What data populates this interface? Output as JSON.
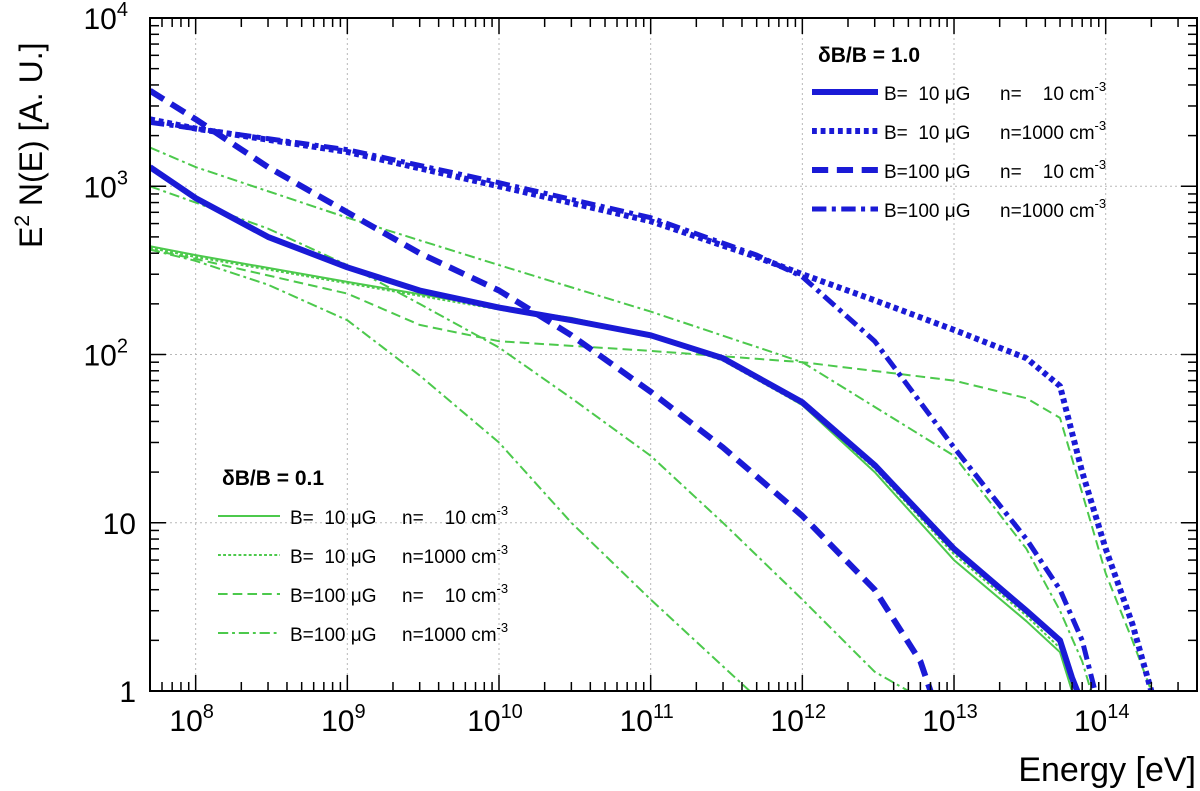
{
  "chart_data": {
    "type": "line",
    "xscale": "log",
    "yscale": "log",
    "xlim": [
      50000000.0,
      400000000000000.0
    ],
    "ylim": [
      1,
      10000
    ],
    "xlabel": "Energy [eV]",
    "ylabel": "E",
    "ylabel_sup": "2",
    "ylabel_rest": " N(E) [A. U.]",
    "x_ticks": [
      {
        "value": 100000000.0,
        "base": "10",
        "exp": "8"
      },
      {
        "value": 1000000000.0,
        "base": "10",
        "exp": "9"
      },
      {
        "value": 10000000000.0,
        "base": "10",
        "exp": "10"
      },
      {
        "value": 100000000000.0,
        "base": "10",
        "exp": "11"
      },
      {
        "value": 1000000000000.0,
        "base": "10",
        "exp": "12"
      },
      {
        "value": 10000000000000.0,
        "base": "10",
        "exp": "13"
      },
      {
        "value": 100000000000000.0,
        "base": "10",
        "exp": "14"
      }
    ],
    "y_ticks": [
      {
        "value": 1,
        "base": "1",
        "exp": ""
      },
      {
        "value": 10,
        "base": "10",
        "exp": ""
      },
      {
        "value": 100,
        "base": "10",
        "exp": "2"
      },
      {
        "value": 1000,
        "base": "10",
        "exp": "3"
      },
      {
        "value": 10000,
        "base": "10",
        "exp": "4"
      }
    ],
    "grid": true,
    "legend_groups": [
      {
        "title": "δB/B = 1.0",
        "placement": "top-right"
      },
      {
        "title": "δB/B = 0.1",
        "placement": "bottom-left"
      }
    ],
    "series": [
      {
        "name": "B= 10 μG n= 10 cm-3",
        "label_b": "B=  10 μG",
        "label_n": "n=    10 cm",
        "label_exp": "-3",
        "group": 0,
        "color": "#1a1ad6",
        "style": "solid",
        "width": 6,
        "points": [
          [
            50000000.0,
            1300
          ],
          [
            100000000.0,
            850
          ],
          [
            300000000.0,
            500
          ],
          [
            1000000000.0,
            330
          ],
          [
            3000000000.0,
            240
          ],
          [
            10000000000.0,
            190
          ],
          [
            30000000000.0,
            160
          ],
          [
            100000000000.0,
            130
          ],
          [
            300000000000.0,
            95
          ],
          [
            1000000000000.0,
            52
          ],
          [
            3000000000000.0,
            22
          ],
          [
            10000000000000.0,
            7
          ],
          [
            30000000000000.0,
            3
          ],
          [
            50000000000000.0,
            2
          ],
          [
            60000000000000.0,
            1.2
          ],
          [
            65000000000000.0,
            1
          ]
        ]
      },
      {
        "name": "B= 10 μG n=1000 cm-3",
        "label_b": "B=  10 μG",
        "label_n": "n=1000 cm",
        "label_exp": "-3",
        "group": 0,
        "color": "#1a1ad6",
        "style": "dot",
        "width": 6,
        "points": [
          [
            50000000.0,
            2500
          ],
          [
            100000000.0,
            2200
          ],
          [
            1000000000.0,
            1600
          ],
          [
            10000000000.0,
            1000
          ],
          [
            100000000000.0,
            620
          ],
          [
            500000000000.0,
            380
          ],
          [
            1000000000000.0,
            300
          ],
          [
            3000000000000.0,
            210
          ],
          [
            10000000000000.0,
            140
          ],
          [
            30000000000000.0,
            95
          ],
          [
            50000000000000.0,
            65
          ],
          [
            70000000000000.0,
            20
          ],
          [
            100000000000000.0,
            7
          ],
          [
            150000000000000.0,
            2.5
          ],
          [
            200000000000000.0,
            1
          ]
        ]
      },
      {
        "name": "B=100 μG n= 10 cm-3",
        "label_b": "B=100 μG",
        "label_n": "n=    10 cm",
        "label_exp": "-3",
        "group": 0,
        "color": "#1a1ad6",
        "style": "dash",
        "width": 6,
        "points": [
          [
            50000000.0,
            3700
          ],
          [
            100000000.0,
            2500
          ],
          [
            300000000.0,
            1300
          ],
          [
            1000000000.0,
            700
          ],
          [
            3000000000.0,
            400
          ],
          [
            10000000000.0,
            240
          ],
          [
            30000000000.0,
            130
          ],
          [
            100000000000.0,
            60
          ],
          [
            300000000000.0,
            28
          ],
          [
            1000000000000.0,
            11
          ],
          [
            3000000000000.0,
            4
          ],
          [
            6000000000000.0,
            1.5
          ],
          [
            7000000000000.0,
            1
          ]
        ]
      },
      {
        "name": "B=100 μG n=1000 cm-3",
        "label_b": "B=100 μG",
        "label_n": "n=1000 cm",
        "label_exp": "-3",
        "group": 0,
        "color": "#1a1ad6",
        "style": "dashdot",
        "width": 5,
        "points": [
          [
            50000000.0,
            2400
          ],
          [
            100000000.0,
            2200
          ],
          [
            1000000000.0,
            1650
          ],
          [
            10000000000.0,
            1050
          ],
          [
            100000000000.0,
            650
          ],
          [
            500000000000.0,
            390
          ],
          [
            1000000000000.0,
            290
          ],
          [
            3000000000000.0,
            120
          ],
          [
            10000000000000.0,
            28
          ],
          [
            30000000000000.0,
            8
          ],
          [
            50000000000000.0,
            4
          ],
          [
            70000000000000.0,
            2
          ],
          [
            85000000000000.0,
            1
          ]
        ]
      },
      {
        "name": "δB/B 0.1: B= 10 μG n= 10 cm-3",
        "label_b": "B=  10 μG",
        "label_n": "n=    10 cm",
        "label_exp": "-3",
        "group": 1,
        "color": "#4cc94c",
        "style": "solid",
        "width": 2,
        "points": [
          [
            50000000.0,
            440
          ],
          [
            100000000.0,
            390
          ],
          [
            1000000000.0,
            270
          ],
          [
            10000000000.0,
            190
          ],
          [
            30000000000.0,
            165
          ],
          [
            100000000000.0,
            130
          ],
          [
            300000000000.0,
            95
          ],
          [
            1000000000000.0,
            50
          ],
          [
            3000000000000.0,
            20
          ],
          [
            10000000000000.0,
            6
          ],
          [
            30000000000000.0,
            2.6
          ],
          [
            50000000000000.0,
            1.7
          ],
          [
            60000000000000.0,
            1
          ]
        ]
      },
      {
        "name": "δB/B 0.1: B= 10 μG n=1000 cm-3",
        "label_b": "B=  10 μG",
        "label_n": "n=1000 cm",
        "label_exp": "-3",
        "group": 1,
        "color": "#4cc94c",
        "style": "dot",
        "width": 2,
        "points": [
          [
            50000000.0,
            430
          ],
          [
            100000000.0,
            380
          ],
          [
            1000000000.0,
            265
          ],
          [
            10000000000.0,
            185
          ],
          [
            30000000000.0,
            160
          ],
          [
            100000000000.0,
            128
          ],
          [
            300000000000.0,
            92
          ],
          [
            1000000000000.0,
            50
          ],
          [
            3000000000000.0,
            21
          ],
          [
            10000000000000.0,
            6.5
          ],
          [
            30000000000000.0,
            2.8
          ],
          [
            50000000000000.0,
            1.8
          ],
          [
            60000000000000.0,
            1
          ]
        ]
      },
      {
        "name": "δB/B 0.1: B=100 μG n= 10 cm-3",
        "label_b": "B=100 μG",
        "label_n": "n=    10 cm",
        "label_exp": "-3",
        "group": 1,
        "color": "#4cc94c",
        "style": "dash",
        "width": 2,
        "points": [
          [
            50000000.0,
            420
          ],
          [
            100000000.0,
            370
          ],
          [
            1000000000.0,
            230
          ],
          [
            3000000000.0,
            150
          ],
          [
            10000000000.0,
            120
          ],
          [
            100000000000.0,
            105
          ],
          [
            1000000000000.0,
            90
          ],
          [
            10000000000000.0,
            70
          ],
          [
            30000000000000.0,
            55
          ],
          [
            50000000000000.0,
            42
          ],
          [
            70000000000000.0,
            15
          ],
          [
            100000000000000.0,
            5
          ],
          [
            150000000000000.0,
            2
          ],
          [
            200000000000000.0,
            1
          ]
        ]
      },
      {
        "name": "δB/B 0.1: B=100 μG n=1000 cm-3",
        "label_b": "B=100 μG",
        "label_n": "n=1000 cm",
        "label_exp": "-3",
        "group": 1,
        "color": "#4cc94c",
        "style": "dashdot",
        "width": 2,
        "points": [
          [
            50000000.0,
            1700
          ],
          [
            100000000.0,
            1300
          ],
          [
            1000000000.0,
            650
          ],
          [
            10000000000.0,
            340
          ],
          [
            100000000000.0,
            180
          ],
          [
            1000000000000.0,
            90
          ],
          [
            10000000000000.0,
            25
          ],
          [
            30000000000000.0,
            7
          ],
          [
            50000000000000.0,
            3
          ],
          [
            70000000000000.0,
            1.5
          ],
          [
            80000000000000.0,
            1
          ]
        ]
      },
      {
        "name": "δB/B 0.1: B=100 μG n=1000 cm-3 (low)",
        "group": 1,
        "color": "#4cc94c",
        "style": "dashdot",
        "width": 2,
        "legend": false,
        "points": [
          [
            50000000.0,
            1000
          ],
          [
            100000000.0,
            800
          ],
          [
            300000000.0,
            560
          ],
          [
            1000000000.0,
            340
          ],
          [
            3000000000.0,
            200
          ],
          [
            10000000000.0,
            110
          ],
          [
            30000000000.0,
            55
          ],
          [
            100000000000.0,
            25
          ],
          [
            300000000000.0,
            10
          ],
          [
            1000000000000.0,
            3.5
          ],
          [
            3000000000000.0,
            1.3
          ],
          [
            5000000000000.0,
            1
          ]
        ]
      },
      {
        "name": "δB/B 0.1: B=100 μG n= 10 cm-3 (steep)",
        "group": 1,
        "color": "#4cc94c",
        "style": "dashdot",
        "width": 2,
        "legend": false,
        "points": [
          [
            50000000.0,
            420
          ],
          [
            100000000.0,
            360
          ],
          [
            300000000.0,
            260
          ],
          [
            1000000000.0,
            160
          ],
          [
            3000000000.0,
            75
          ],
          [
            10000000000.0,
            30
          ],
          [
            30000000000.0,
            10
          ],
          [
            100000000000.0,
            3.5
          ],
          [
            300000000000.0,
            1.4
          ],
          [
            450000000000.0,
            1
          ]
        ]
      }
    ]
  }
}
